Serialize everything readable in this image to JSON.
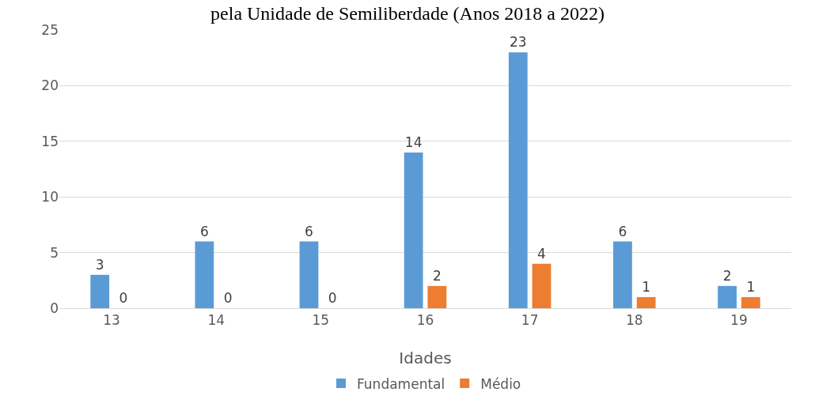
{
  "chart_data": {
    "type": "bar",
    "title": "pela Unidade de Semiliberdade (Anos 2018 a 2022)",
    "xlabel": "Idades",
    "categories": [
      "13",
      "14",
      "15",
      "16",
      "17",
      "18",
      "19"
    ],
    "series": [
      {
        "name": "Fundamental",
        "color": "#5b9bd5",
        "values": [
          3,
          6,
          6,
          14,
          23,
          6,
          2
        ]
      },
      {
        "name": "Médio",
        "color": "#ed7d31",
        "values": [
          0,
          0,
          0,
          2,
          4,
          1,
          1
        ]
      }
    ],
    "ylim": [
      0,
      25
    ],
    "yticks": [
      0,
      5,
      10,
      15,
      20,
      25
    ],
    "grid": "y",
    "legend": "bottom",
    "data_labels": true
  }
}
